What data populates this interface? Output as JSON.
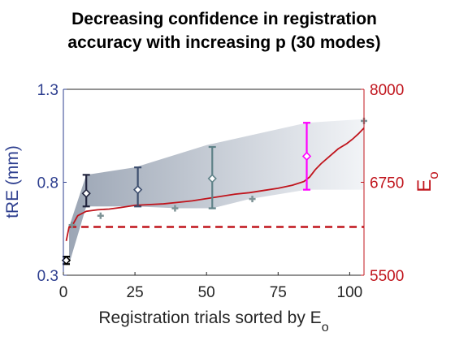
{
  "chart_data": {
    "type": "line",
    "title_lines": [
      "Decreasing confidence in registration",
      "accuracy with increasing p (30 modes)"
    ],
    "xlabel": "Registration trials sorted by E",
    "xlabel_subscript": "o",
    "ylabel_left": "tRE (mm)",
    "ylabel_right": "E",
    "ylabel_right_subscript": "o",
    "xlim": [
      0,
      105
    ],
    "ylim_left": [
      0.3,
      1.3
    ],
    "ylim_right": [
      5500,
      8000
    ],
    "x_ticks": [
      "0",
      "25",
      "50",
      "75",
      "100"
    ],
    "y_left_ticks": [
      "0.3",
      "0.8",
      "1.3"
    ],
    "y_right_ticks": [
      "5500",
      "6750",
      "8000"
    ],
    "grid": false,
    "colors": {
      "eo_line": "#c0141c",
      "threshold": "#c0141c",
      "band": "#a7b0bf",
      "left_axis": "#2e3f8f",
      "right_axis": "#c0141c"
    },
    "threshold_eo": 6150,
    "eo_curve": [
      [
        1,
        5960
      ],
      [
        2,
        6150
      ],
      [
        3,
        6160
      ],
      [
        5,
        6300
      ],
      [
        8,
        6360
      ],
      [
        12,
        6380
      ],
      [
        16,
        6390
      ],
      [
        20,
        6410
      ],
      [
        25,
        6440
      ],
      [
        30,
        6450
      ],
      [
        35,
        6460
      ],
      [
        40,
        6480
      ],
      [
        45,
        6500
      ],
      [
        50,
        6530
      ],
      [
        55,
        6560
      ],
      [
        60,
        6590
      ],
      [
        65,
        6610
      ],
      [
        70,
        6640
      ],
      [
        75,
        6670
      ],
      [
        80,
        6710
      ],
      [
        84,
        6760
      ],
      [
        86,
        6820
      ],
      [
        88,
        6920
      ],
      [
        90,
        7000
      ],
      [
        93,
        7100
      ],
      [
        96,
        7200
      ],
      [
        99,
        7270
      ],
      [
        101,
        7330
      ],
      [
        103,
        7400
      ],
      [
        105,
        7480
      ]
    ],
    "band_upper": [
      [
        2,
        0.56
      ],
      [
        8,
        0.84
      ],
      [
        25,
        0.88
      ],
      [
        50,
        1.0
      ],
      [
        85,
        1.12
      ],
      [
        105,
        1.14
      ]
    ],
    "band_lower": [
      [
        2,
        0.36
      ],
      [
        8,
        0.67
      ],
      [
        25,
        0.67
      ],
      [
        40,
        0.66
      ],
      [
        52,
        0.66
      ],
      [
        65,
        0.71
      ],
      [
        85,
        0.76
      ],
      [
        105,
        0.76
      ]
    ],
    "markers": [
      {
        "x": 1,
        "y": 0.38
      },
      {
        "x": 3,
        "y": 0.57
      },
      {
        "x": 13,
        "y": 0.62
      },
      {
        "x": 39,
        "y": 0.66
      },
      {
        "x": 66,
        "y": 0.71
      },
      {
        "x": 105,
        "y": 1.13
      }
    ],
    "error_points": [
      {
        "x": 1,
        "y": 0.38,
        "low": 0.36,
        "high": 0.4,
        "color": "#000000"
      },
      {
        "x": 8,
        "y": 0.74,
        "low": 0.67,
        "high": 0.84,
        "color": "#22253f"
      },
      {
        "x": 26,
        "y": 0.76,
        "low": 0.67,
        "high": 0.88,
        "color": "#3d4e6e"
      },
      {
        "x": 52,
        "y": 0.82,
        "low": 0.66,
        "high": 0.99,
        "color": "#5f8288"
      },
      {
        "x": 85,
        "y": 0.94,
        "low": 0.76,
        "high": 1.12,
        "color": "#ff00ff"
      }
    ]
  }
}
